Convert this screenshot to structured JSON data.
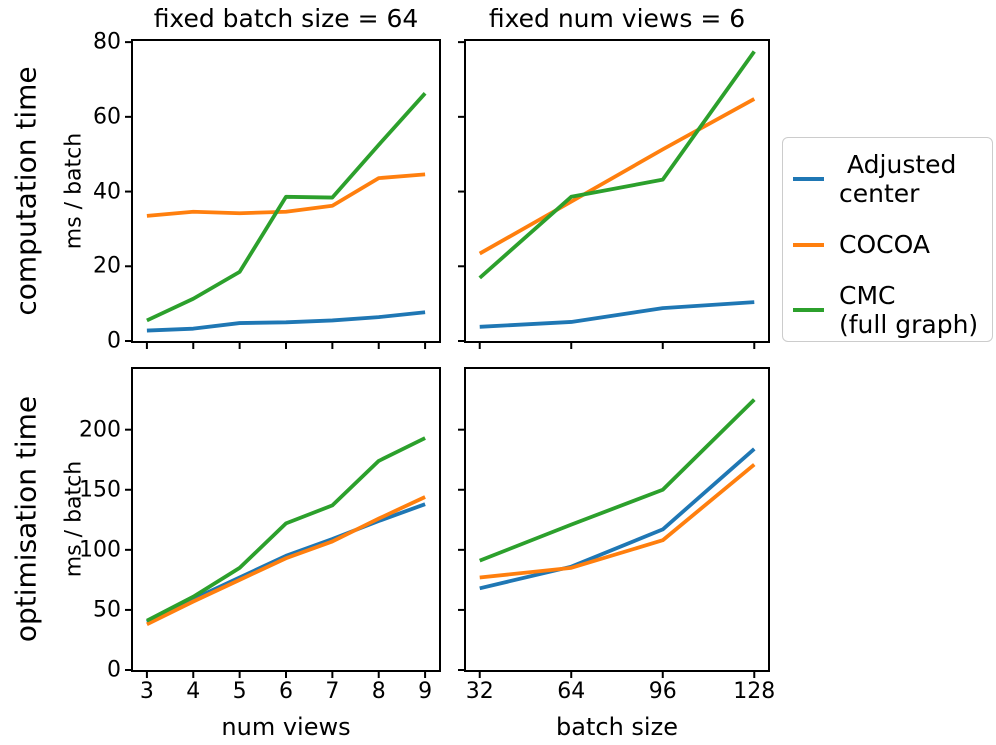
{
  "titles": {
    "col1": "fixed batch size = 64",
    "col2": "fixed num views = 6"
  },
  "row_labels": {
    "row1_outer": "computation time",
    "row1_inner": "ms / batch",
    "row2_outer": "optimisation time",
    "row2_inner": "ms / batch"
  },
  "x_axis": {
    "col1_label": "num views",
    "col2_label": "batch size"
  },
  "colors": {
    "adjusted_center": "#1f77b4",
    "cocoa": "#ff7f0e",
    "cmc_full_graph": "#2ca02c",
    "axis": "#000000",
    "legend_border": "#cccccc"
  },
  "legend": {
    "position": "center right",
    "items": [
      {
        "lines": [
          " Adjusted",
          "center"
        ],
        "color": "#1f77b4"
      },
      {
        "lines": [
          "COCOA"
        ],
        "color": "#ff7f0e"
      },
      {
        "lines": [
          "CMC",
          "(full graph)"
        ],
        "color": "#2ca02c"
      }
    ]
  },
  "chart_data": [
    {
      "type": "line",
      "title": "fixed batch size = 64",
      "xlabel": "num views",
      "ylabel": "computation time (ms / batch)",
      "x": [
        3,
        4,
        5,
        6,
        7,
        8,
        9
      ],
      "xticks": [
        3,
        4,
        5,
        6,
        7,
        8,
        9
      ],
      "yticks": [
        0,
        20,
        40,
        60,
        80
      ],
      "xlim": [
        2.7,
        9.3
      ],
      "ylim": [
        0,
        80.3
      ],
      "grid": false,
      "xtick_labels_visible": false,
      "ytick_labels_visible": true,
      "series": [
        {
          "name": "Adjusted center",
          "color": "#1f77b4",
          "values": [
            2.8,
            3.3,
            4.8,
            5.0,
            5.5,
            6.4,
            7.7
          ]
        },
        {
          "name": "COCOA",
          "color": "#ff7f0e",
          "values": [
            33.5,
            34.6,
            34.2,
            34.6,
            36.2,
            43.6,
            44.6
          ]
        },
        {
          "name": "CMC (full graph)",
          "color": "#2ca02c",
          "values": [
            5.5,
            11.3,
            18.5,
            38.6,
            38.4,
            52.5,
            66.3
          ]
        }
      ]
    },
    {
      "type": "line",
      "title": "fixed num views = 6",
      "xlabel": "batch size",
      "ylabel": "computation time (ms / batch)",
      "x": [
        32,
        64,
        96,
        128
      ],
      "xticks": [
        32,
        64,
        96,
        128
      ],
      "yticks": [
        0,
        20,
        40,
        60,
        80
      ],
      "xlim": [
        27.2,
        132.8
      ],
      "ylim": [
        0,
        80.3
      ],
      "grid": false,
      "xtick_labels_visible": false,
      "ytick_labels_visible": false,
      "series": [
        {
          "name": "Adjusted center",
          "color": "#1f77b4",
          "values": [
            3.8,
            5.1,
            8.8,
            10.4
          ]
        },
        {
          "name": "COCOA",
          "color": "#ff7f0e",
          "values": [
            23.4,
            37.3,
            51.3,
            64.8
          ]
        },
        {
          "name": "CMC (full graph)",
          "color": "#2ca02c",
          "values": [
            16.9,
            38.6,
            43.2,
            77.5
          ]
        }
      ]
    },
    {
      "type": "line",
      "title": "",
      "xlabel": "num views",
      "ylabel": "optimisation time (ms / batch)",
      "x": [
        3,
        4,
        5,
        6,
        7,
        8,
        9
      ],
      "xticks": [
        3,
        4,
        5,
        6,
        7,
        8,
        9
      ],
      "yticks": [
        0,
        50,
        100,
        150,
        200
      ],
      "xlim": [
        2.7,
        9.3
      ],
      "ylim": [
        0,
        250.5
      ],
      "grid": false,
      "xtick_labels_visible": true,
      "ytick_labels_visible": true,
      "series": [
        {
          "name": "Adjusted center",
          "color": "#1f77b4",
          "values": [
            40,
            59,
            77,
            95,
            109,
            124,
            138
          ]
        },
        {
          "name": "COCOA",
          "color": "#ff7f0e",
          "values": [
            38,
            57,
            75,
            93,
            107,
            126,
            144
          ]
        },
        {
          "name": "CMC (full graph)",
          "color": "#2ca02c",
          "values": [
            41,
            61,
            85,
            122,
            137,
            174,
            193
          ]
        }
      ]
    },
    {
      "type": "line",
      "title": "",
      "xlabel": "batch size",
      "ylabel": "optimisation time (ms / batch)",
      "x": [
        32,
        64,
        96,
        128
      ],
      "xticks": [
        32,
        64,
        96,
        128
      ],
      "yticks": [
        0,
        50,
        100,
        150,
        200
      ],
      "xlim": [
        27.2,
        132.8
      ],
      "ylim": [
        0,
        250.5
      ],
      "grid": false,
      "xtick_labels_visible": true,
      "ytick_labels_visible": false,
      "series": [
        {
          "name": "Adjusted center",
          "color": "#1f77b4",
          "values": [
            68,
            86,
            117,
            184
          ]
        },
        {
          "name": "COCOA",
          "color": "#ff7f0e",
          "values": [
            77,
            85,
            108,
            171
          ]
        },
        {
          "name": "CMC (full graph)",
          "color": "#2ca02c",
          "values": [
            91,
            121,
            150,
            225
          ]
        }
      ]
    }
  ]
}
